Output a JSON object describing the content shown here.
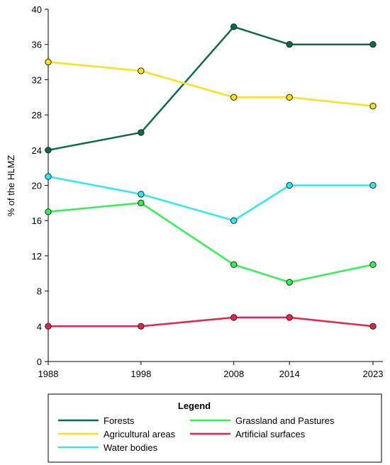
{
  "chart_data": {
    "type": "line",
    "title": "",
    "xlabel": "",
    "ylabel": "% of the HLMZ",
    "x": [
      1988,
      1998,
      2008,
      2014,
      2023
    ],
    "xlim": [
      1988,
      2023
    ],
    "ylim": [
      0,
      40
    ],
    "yticks": [
      0,
      4,
      8,
      12,
      16,
      20,
      24,
      28,
      32,
      36,
      40
    ],
    "grid": false,
    "legend_title": "Legend",
    "legend_position": "bottom",
    "series": [
      {
        "name": "Forests",
        "color": "#0f6b46",
        "values": [
          24,
          26,
          38,
          36,
          36
        ]
      },
      {
        "name": "Agricultural areas",
        "color": "#f7e21a",
        "values": [
          34,
          33,
          30,
          30,
          29
        ]
      },
      {
        "name": "Water bodies",
        "color": "#2ee8f0",
        "values": [
          21,
          19,
          16,
          20,
          20
        ]
      },
      {
        "name": "Grassland and Pastures",
        "color": "#33ee55",
        "values": [
          17,
          18,
          11,
          9,
          11
        ]
      },
      {
        "name": "Artificial surfaces",
        "color": "#e8244a",
        "values": [
          4,
          4,
          5,
          5,
          4
        ]
      }
    ]
  }
}
